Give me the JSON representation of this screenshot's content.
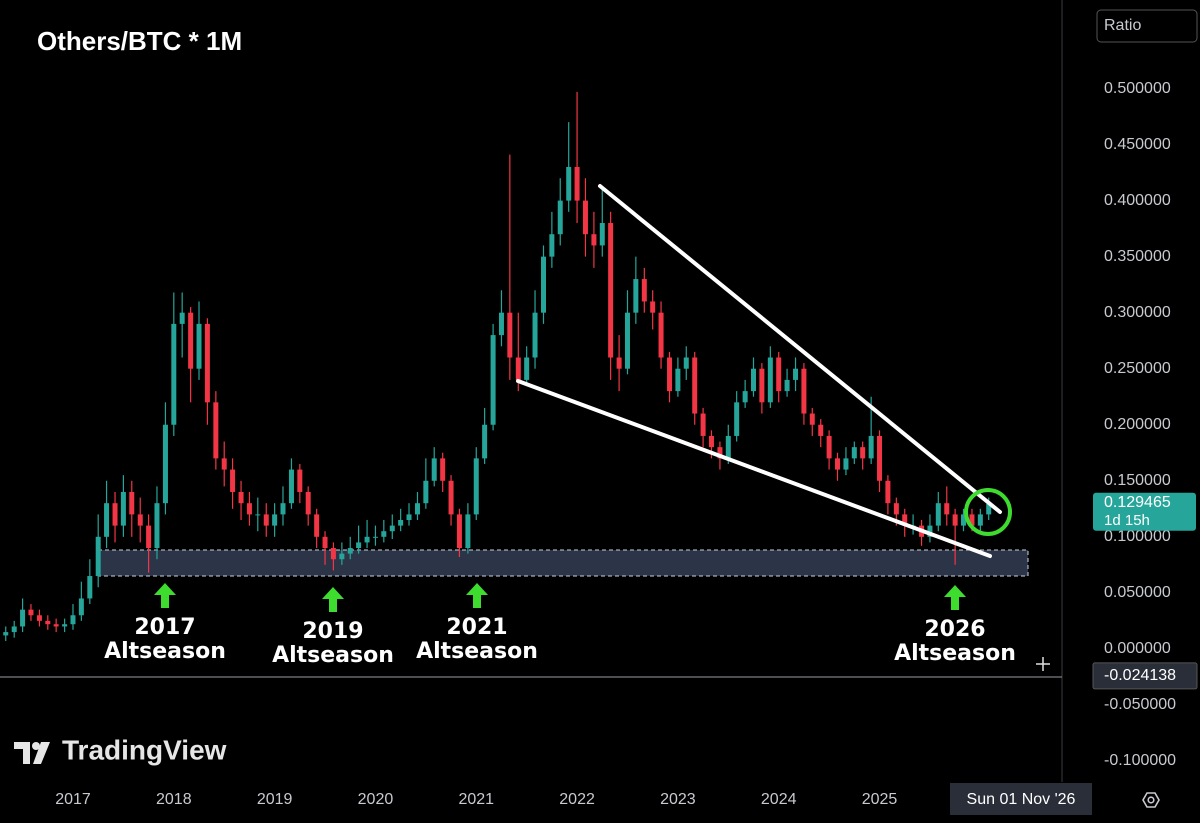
{
  "chart_data": {
    "type": "candlestick",
    "title": "Others/BTC * 1M",
    "price_scale_label": "Ratio",
    "up_color": "#26a69a",
    "down_color": "#f23645",
    "grid": false,
    "xlim": [
      2016.276,
      2026.81
    ],
    "xticks": [
      2017,
      2018,
      2019,
      2020,
      2021,
      2022,
      2023,
      2024,
      2025
    ],
    "ylim": [
      -0.117,
      0.579
    ],
    "yticks": [
      {
        "value": 0.5,
        "label": "0.500000"
      },
      {
        "value": 0.45,
        "label": "0.450000"
      },
      {
        "value": 0.4,
        "label": "0.400000"
      },
      {
        "value": 0.35,
        "label": "0.350000"
      },
      {
        "value": 0.3,
        "label": "0.300000"
      },
      {
        "value": 0.25,
        "label": "0.250000"
      },
      {
        "value": 0.2,
        "label": "0.200000"
      },
      {
        "value": 0.15,
        "label": "0.150000"
      },
      {
        "value": 0.1,
        "label": "0.100000"
      },
      {
        "value": 0.05,
        "label": "0.050000"
      },
      {
        "value": 0,
        "label": "0.000000"
      },
      {
        "value": -0.05,
        "label": "-0.050000"
      },
      {
        "value": -0.1,
        "label": "-0.100000"
      }
    ],
    "x": [
      2016.333,
      2016.417,
      2016.5,
      2016.583,
      2016.667,
      2016.75,
      2016.833,
      2016.917,
      2017.0,
      2017.083,
      2017.167,
      2017.25,
      2017.333,
      2017.417,
      2017.5,
      2017.583,
      2017.667,
      2017.75,
      2017.833,
      2017.917,
      2018.0,
      2018.083,
      2018.167,
      2018.25,
      2018.333,
      2018.417,
      2018.5,
      2018.583,
      2018.667,
      2018.75,
      2018.833,
      2018.917,
      2019.0,
      2019.083,
      2019.167,
      2019.25,
      2019.333,
      2019.417,
      2019.5,
      2019.583,
      2019.667,
      2019.75,
      2019.833,
      2019.917,
      2020.0,
      2020.083,
      2020.167,
      2020.25,
      2020.333,
      2020.417,
      2020.5,
      2020.583,
      2020.667,
      2020.75,
      2020.833,
      2020.917,
      2021.0,
      2021.083,
      2021.167,
      2021.25,
      2021.333,
      2021.417,
      2021.5,
      2021.583,
      2021.667,
      2021.75,
      2021.833,
      2021.917,
      2022.0,
      2022.083,
      2022.167,
      2022.25,
      2022.333,
      2022.417,
      2022.5,
      2022.583,
      2022.667,
      2022.75,
      2022.833,
      2022.917,
      2023.0,
      2023.083,
      2023.167,
      2023.25,
      2023.333,
      2023.417,
      2023.5,
      2023.583,
      2023.667,
      2023.75,
      2023.833,
      2023.917,
      2024.0,
      2024.083,
      2024.167,
      2024.25,
      2024.333,
      2024.417,
      2024.5,
      2024.583,
      2024.667,
      2024.75,
      2024.833,
      2024.917,
      2025.0,
      2025.083,
      2025.167,
      2025.25,
      2025.333,
      2025.417,
      2025.5,
      2025.583,
      2025.667,
      2025.75,
      2025.833,
      2025.917,
      2026.0,
      2026.083
    ],
    "open": [
      0.012,
      0.015,
      0.02,
      0.035,
      0.03,
      0.025,
      0.022,
      0.02,
      0.022,
      0.03,
      0.045,
      0.065,
      0.1,
      0.13,
      0.11,
      0.14,
      0.12,
      0.11,
      0.09,
      0.13,
      0.2,
      0.29,
      0.3,
      0.25,
      0.29,
      0.22,
      0.17,
      0.16,
      0.14,
      0.13,
      0.12,
      0.12,
      0.11,
      0.12,
      0.13,
      0.16,
      0.14,
      0.12,
      0.1,
      0.09,
      0.08,
      0.085,
      0.09,
      0.095,
      0.1,
      0.1,
      0.105,
      0.11,
      0.115,
      0.12,
      0.13,
      0.15,
      0.17,
      0.15,
      0.12,
      0.09,
      0.12,
      0.17,
      0.2,
      0.28,
      0.3,
      0.26,
      0.24,
      0.26,
      0.3,
      0.35,
      0.37,
      0.4,
      0.43,
      0.4,
      0.37,
      0.36,
      0.38,
      0.26,
      0.25,
      0.3,
      0.33,
      0.31,
      0.3,
      0.26,
      0.23,
      0.25,
      0.26,
      0.21,
      0.19,
      0.18,
      0.17,
      0.19,
      0.22,
      0.23,
      0.25,
      0.22,
      0.26,
      0.23,
      0.24,
      0.25,
      0.21,
      0.2,
      0.19,
      0.17,
      0.16,
      0.17,
      0.18,
      0.17,
      0.19,
      0.15,
      0.13,
      0.12,
      0.11,
      0.11,
      0.1,
      0.11,
      0.13,
      0.12,
      0.11,
      0.12,
      0.11,
      0.12
    ],
    "high": [
      0.02,
      0.025,
      0.045,
      0.04,
      0.035,
      0.03,
      0.027,
      0.027,
      0.04,
      0.06,
      0.08,
      0.12,
      0.15,
      0.14,
      0.155,
      0.15,
      0.135,
      0.12,
      0.145,
      0.22,
      0.318,
      0.318,
      0.305,
      0.31,
      0.295,
      0.23,
      0.185,
      0.17,
      0.15,
      0.14,
      0.135,
      0.13,
      0.13,
      0.145,
      0.17,
      0.165,
      0.145,
      0.125,
      0.105,
      0.095,
      0.095,
      0.1,
      0.11,
      0.115,
      0.11,
      0.115,
      0.12,
      0.125,
      0.13,
      0.14,
      0.17,
      0.18,
      0.175,
      0.155,
      0.125,
      0.13,
      0.18,
      0.215,
      0.29,
      0.32,
      0.441,
      0.3,
      0.27,
      0.32,
      0.36,
      0.39,
      0.42,
      0.47,
      0.497,
      0.42,
      0.39,
      0.41,
      0.39,
      0.28,
      0.32,
      0.35,
      0.34,
      0.32,
      0.31,
      0.265,
      0.26,
      0.27,
      0.265,
      0.215,
      0.195,
      0.185,
      0.2,
      0.23,
      0.24,
      0.26,
      0.255,
      0.27,
      0.265,
      0.25,
      0.26,
      0.255,
      0.215,
      0.205,
      0.195,
      0.175,
      0.18,
      0.185,
      0.185,
      0.225,
      0.195,
      0.155,
      0.135,
      0.125,
      0.12,
      0.115,
      0.12,
      0.14,
      0.145,
      0.125,
      0.125,
      0.125,
      0.125,
      0.135
    ],
    "low": [
      0.007,
      0.01,
      0.015,
      0.025,
      0.02,
      0.017,
      0.015,
      0.015,
      0.017,
      0.025,
      0.04,
      0.055,
      0.09,
      0.095,
      0.1,
      0.1,
      0.095,
      0.068,
      0.08,
      0.12,
      0.19,
      0.26,
      0.22,
      0.24,
      0.2,
      0.16,
      0.145,
      0.125,
      0.115,
      0.11,
      0.105,
      0.1,
      0.1,
      0.11,
      0.125,
      0.13,
      0.11,
      0.09,
      0.075,
      0.07,
      0.075,
      0.08,
      0.085,
      0.09,
      0.092,
      0.095,
      0.098,
      0.105,
      0.11,
      0.115,
      0.125,
      0.145,
      0.14,
      0.11,
      0.082,
      0.085,
      0.115,
      0.165,
      0.195,
      0.27,
      0.24,
      0.23,
      0.235,
      0.25,
      0.29,
      0.34,
      0.36,
      0.39,
      0.38,
      0.35,
      0.34,
      0.35,
      0.24,
      0.23,
      0.245,
      0.29,
      0.3,
      0.285,
      0.25,
      0.22,
      0.225,
      0.24,
      0.2,
      0.18,
      0.17,
      0.16,
      0.165,
      0.185,
      0.215,
      0.225,
      0.21,
      0.215,
      0.22,
      0.225,
      0.23,
      0.2,
      0.19,
      0.18,
      0.16,
      0.15,
      0.155,
      0.165,
      0.16,
      0.165,
      0.14,
      0.12,
      0.11,
      0.1,
      0.102,
      0.092,
      0.095,
      0.105,
      0.11,
      0.075,
      0.105,
      0.105,
      0.105,
      0.115
    ],
    "close": [
      0.015,
      0.02,
      0.035,
      0.03,
      0.025,
      0.022,
      0.02,
      0.022,
      0.03,
      0.045,
      0.065,
      0.1,
      0.13,
      0.11,
      0.14,
      0.12,
      0.11,
      0.09,
      0.13,
      0.2,
      0.29,
      0.3,
      0.25,
      0.29,
      0.22,
      0.17,
      0.16,
      0.14,
      0.13,
      0.12,
      0.12,
      0.11,
      0.12,
      0.13,
      0.16,
      0.14,
      0.12,
      0.1,
      0.09,
      0.08,
      0.085,
      0.09,
      0.095,
      0.1,
      0.1,
      0.105,
      0.11,
      0.115,
      0.12,
      0.13,
      0.15,
      0.17,
      0.15,
      0.12,
      0.09,
      0.12,
      0.17,
      0.2,
      0.28,
      0.3,
      0.26,
      0.24,
      0.26,
      0.3,
      0.35,
      0.37,
      0.4,
      0.43,
      0.4,
      0.37,
      0.36,
      0.38,
      0.26,
      0.25,
      0.3,
      0.33,
      0.31,
      0.3,
      0.26,
      0.23,
      0.25,
      0.26,
      0.21,
      0.19,
      0.18,
      0.17,
      0.19,
      0.22,
      0.23,
      0.25,
      0.22,
      0.26,
      0.23,
      0.24,
      0.25,
      0.21,
      0.2,
      0.19,
      0.17,
      0.16,
      0.17,
      0.18,
      0.17,
      0.19,
      0.15,
      0.13,
      0.12,
      0.11,
      0.11,
      0.1,
      0.11,
      0.13,
      0.12,
      0.11,
      0.12,
      0.11,
      0.12,
      0.129465
    ],
    "countdown": "1d 15h",
    "crosshair_value": -0.024138,
    "crosshair_date": "Sun 01 Nov '26",
    "annotations": [
      [
        "2017",
        "Altseason"
      ],
      [
        "2019",
        "Altseason"
      ],
      [
        "2021",
        "Altseason"
      ],
      [
        "2026",
        "Altseason"
      ]
    ],
    "watermark": "TradingView"
  }
}
